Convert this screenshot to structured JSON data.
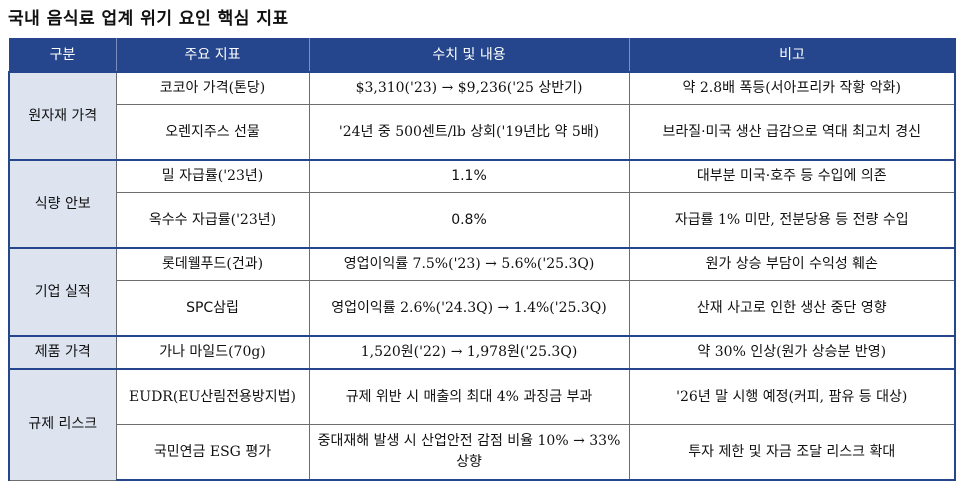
{
  "title": "국내 음식료 업계 위기 요인 핵심 지표",
  "header": {
    "category": "구분",
    "indicator": "주요 지표",
    "value": "수치 및 내용",
    "note": "비고"
  },
  "groups": [
    {
      "category": "원자재 가격",
      "rows": [
        {
          "indicator": "코코아 가격(톤당)",
          "value": "$3,310('23) → $9,236('25 상반기)",
          "note": "약 2.8배 폭등(서아프리카 작황 악화)"
        },
        {
          "indicator": "오렌지주스 선물",
          "value": "'24년 중 500센트/lb 상회('19년比 약 5배)",
          "note": "브라질·미국 생산 급감으로 역대 최고치 경신"
        }
      ]
    },
    {
      "category": "식량 안보",
      "rows": [
        {
          "indicator": "밀 자급률('23년)",
          "value": "1.1%",
          "note": "대부분 미국·호주 등 수입에 의존"
        },
        {
          "indicator": "옥수수 자급률('23년)",
          "value": "0.8%",
          "note": "자급률 1% 미만, 전분당용 등 전량 수입"
        }
      ]
    },
    {
      "category": "기업 실적",
      "rows": [
        {
          "indicator": "롯데웰푸드(건과)",
          "value": "영업이익률 7.5%('23) → 5.6%('25.3Q)",
          "note": "원가 상승 부담이 수익성 훼손"
        },
        {
          "indicator": "SPC삼립",
          "value": "영업이익률 2.6%('24.3Q) → 1.4%('25.3Q)",
          "note": "산재 사고로 인한 생산 중단 영향"
        }
      ]
    },
    {
      "category": "제품 가격",
      "rows": [
        {
          "indicator": "가나 마일드(70g)",
          "value": "1,520원('22) → 1,978원('25.3Q)",
          "note": "약 30% 인상(원가 상승분 반영)"
        }
      ]
    },
    {
      "category": "규제 리스크",
      "rows": [
        {
          "indicator": "EUDR(EU산림전용방지법)",
          "value": "규제 위반 시 매출의 최대 4% 과징금 부과",
          "note": "'26년 말 시행 예정(커피, 팜유 등 대상)"
        },
        {
          "indicator": "국민연금 ESG 평가",
          "value": "중대재해 발생 시 산업안전 감점 비율 10% → 33% 상향",
          "note": "투자 제한 및 자금 조달 리스크 확대"
        }
      ]
    }
  ]
}
